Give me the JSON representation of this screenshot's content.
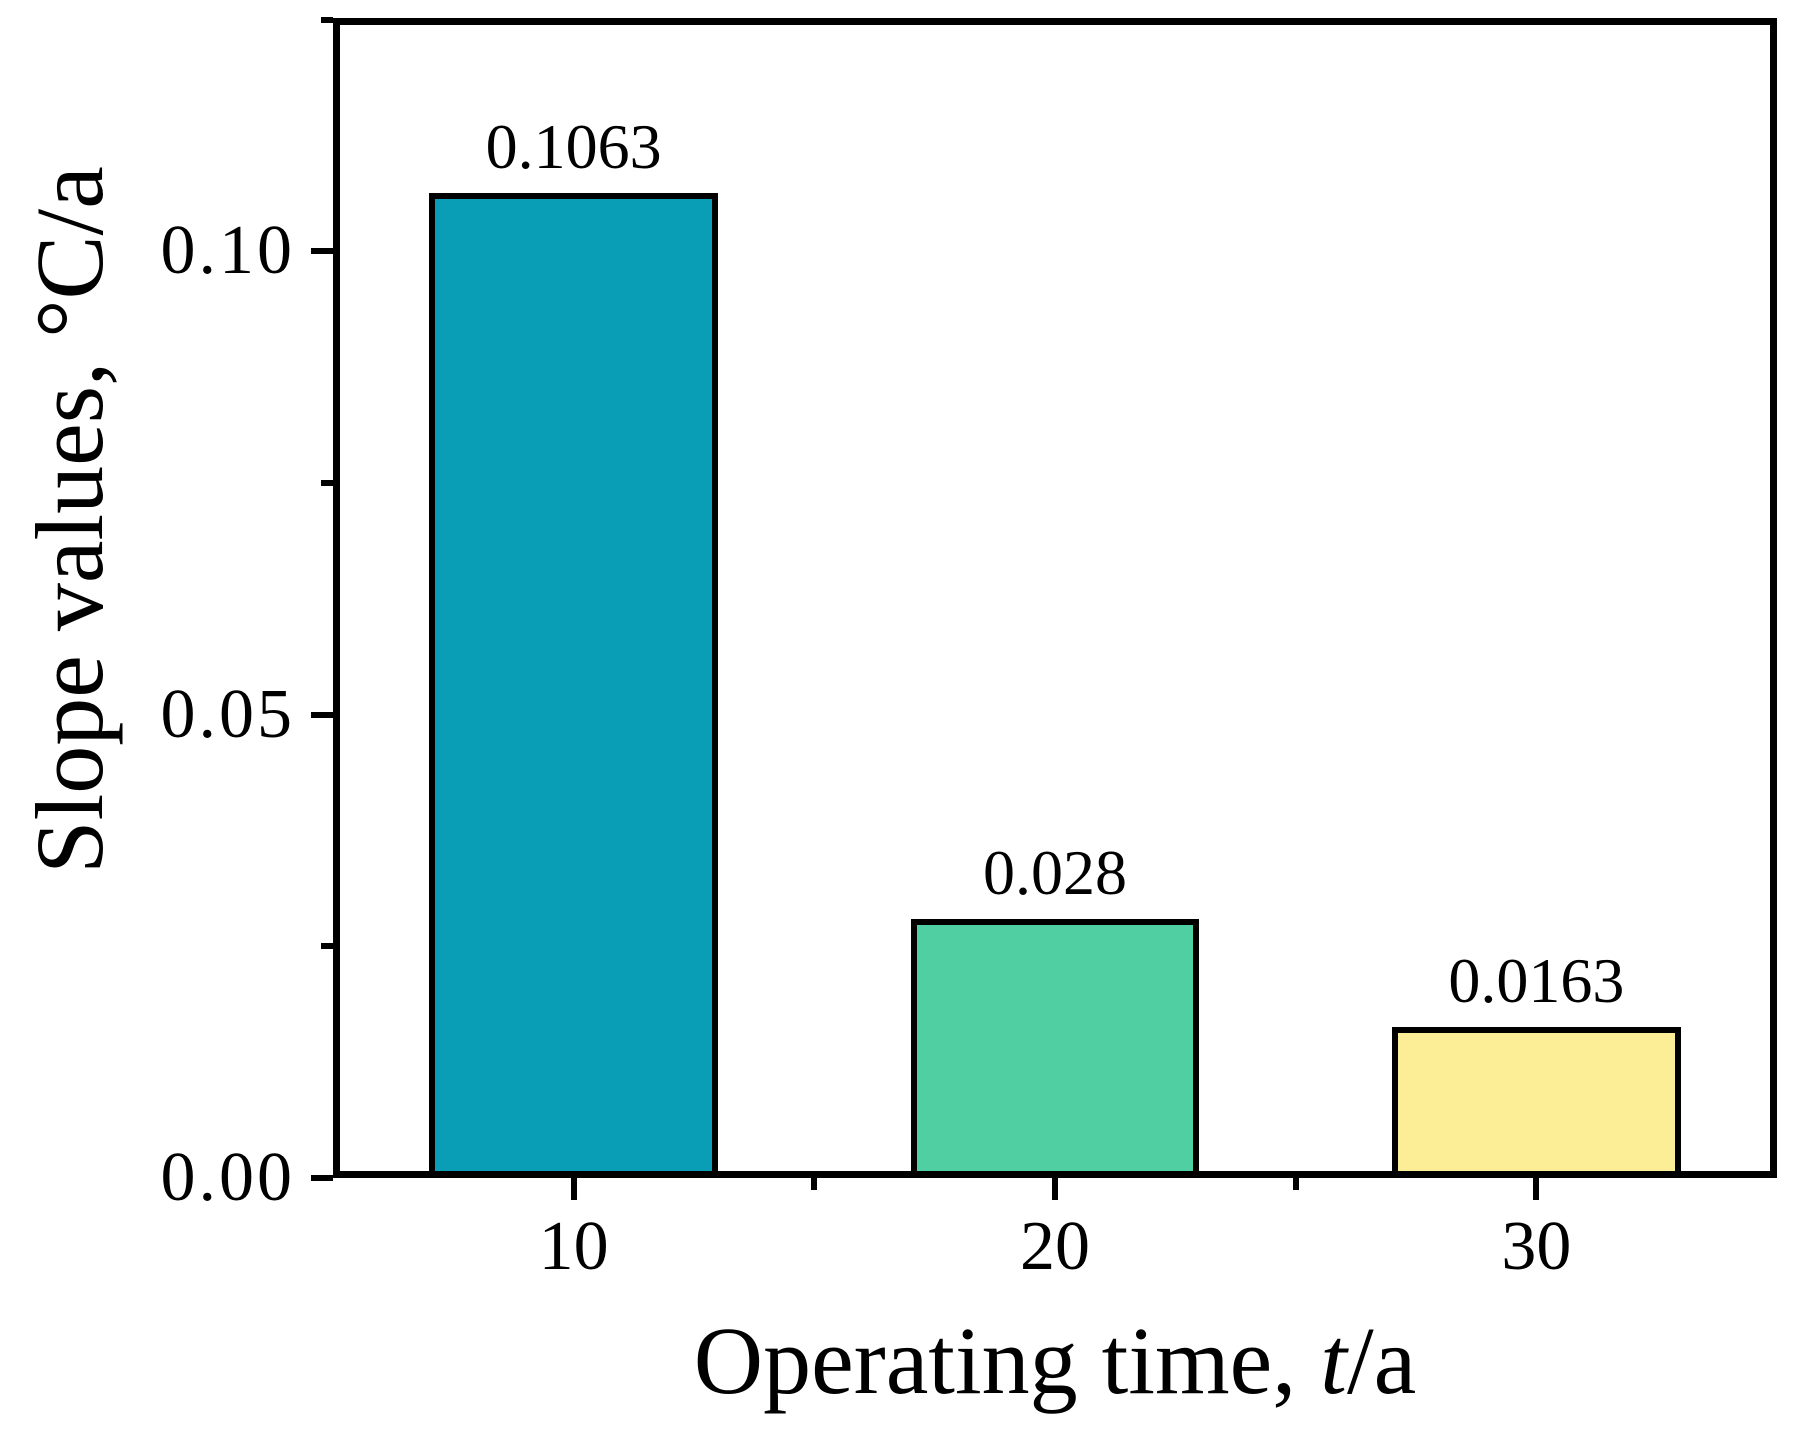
{
  "figure": {
    "background": "#ffffff",
    "text_color": "#000000"
  },
  "chart_data": {
    "type": "bar",
    "categories": [
      "10",
      "20",
      "30"
    ],
    "x_positions": [
      10,
      20,
      30
    ],
    "values": [
      0.1063,
      0.028,
      0.0163
    ],
    "bar_labels": [
      "0.1063",
      "0.028",
      "0.0163"
    ],
    "bar_colors": [
      "#0a9db6",
      "#4fcfa2",
      "#fcee97"
    ],
    "bar_edge_color": "#000000",
    "axis_color": "#000000",
    "xlabel": {
      "prefix": "Operating time, ",
      "italic": "t",
      "suffix": "/a"
    },
    "ylabel": "Slope values, °C/a",
    "xlim": [
      5,
      35
    ],
    "ylim": [
      0,
      0.1252
    ],
    "bar_width_units": 6,
    "y_major_ticks": [
      {
        "value": 0.0,
        "label": "0.00"
      },
      {
        "value": 0.05,
        "label": "0.05"
      },
      {
        "value": 0.1,
        "label": "0.10"
      }
    ],
    "y_minor_ticks": [
      0.025,
      0.075,
      0.125
    ],
    "x_major_ticks": [
      10,
      20,
      30
    ],
    "x_minor_ticks": [
      15,
      25
    ],
    "grid": false,
    "legend": null,
    "frame": "full-box"
  }
}
